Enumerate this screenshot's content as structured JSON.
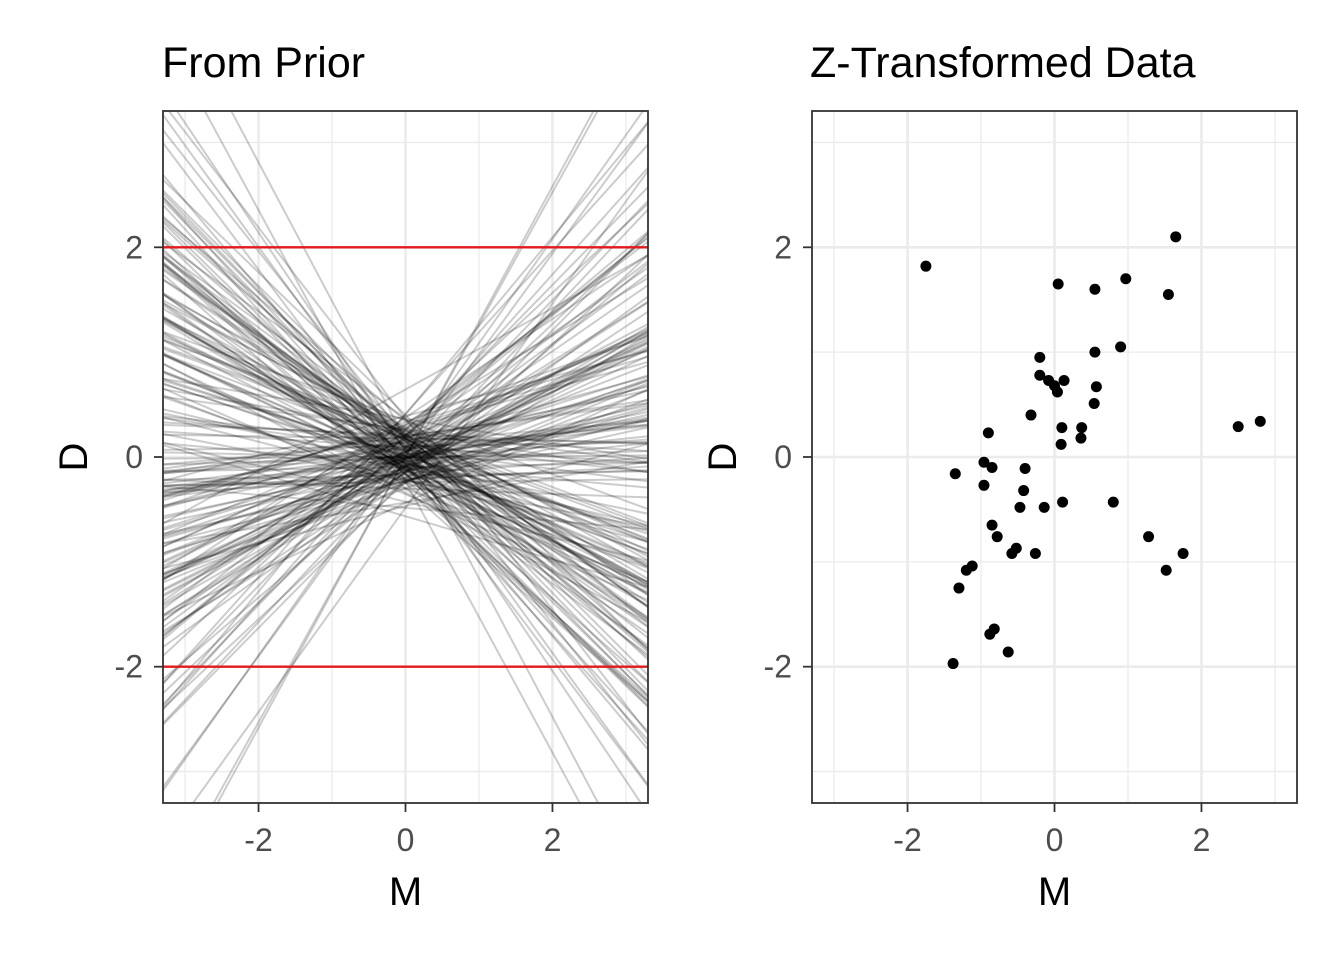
{
  "chart_data": [
    {
      "type": "line",
      "title": "From Prior",
      "xlabel": "M",
      "ylabel": "D",
      "xlim": [
        -3.3,
        3.3
      ],
      "ylim": [
        -3.3,
        3.3
      ],
      "xticks": [
        -2,
        0,
        2
      ],
      "yticks": [
        -2,
        0,
        2
      ],
      "xtick_labels": [
        "-2",
        "0",
        "2"
      ],
      "ytick_labels": [
        "-2",
        "0",
        "2"
      ],
      "grid": true,
      "reference_lines": [
        {
          "y": 2,
          "color": "#e41a1c"
        },
        {
          "y": -2,
          "color": "#e41a1c"
        }
      ],
      "series": {
        "color": "#000000",
        "opacity": 0.2,
        "intercept_sd": 0.2,
        "slope_sd": 0.5,
        "count": 200,
        "lines": [
          {
            "intercept": 0.09,
            "slope": -0.55
          },
          {
            "intercept": -0.21,
            "slope": 0.71
          },
          {
            "intercept": 0.32,
            "slope": 0.42
          },
          {
            "intercept": -0.05,
            "slope": -0.83
          },
          {
            "intercept": 0.14,
            "slope": 0.19
          },
          {
            "intercept": -0.3,
            "slope": -0.27
          },
          {
            "intercept": 0.02,
            "slope": 0.96
          },
          {
            "intercept": 0.25,
            "slope": -0.12
          },
          {
            "intercept": -0.12,
            "slope": 0.35
          },
          {
            "intercept": 0.4,
            "slope": -0.68
          }
        ]
      }
    },
    {
      "type": "scatter",
      "title": "Z-Transformed Data",
      "xlabel": "M",
      "ylabel": "D",
      "xlim": [
        -3.3,
        3.3
      ],
      "ylim": [
        -3.3,
        3.3
      ],
      "xticks": [
        -2,
        0,
        2
      ],
      "yticks": [
        -2,
        0,
        2
      ],
      "xtick_labels": [
        "-2",
        "0",
        "2"
      ],
      "ytick_labels": [
        "-2",
        "0",
        "2"
      ],
      "grid": true,
      "color": "#000000",
      "points": [
        [
          -1.75,
          1.82
        ],
        [
          1.65,
          2.1
        ],
        [
          0.05,
          1.65
        ],
        [
          0.55,
          1.6
        ],
        [
          0.97,
          1.7
        ],
        [
          1.55,
          1.55
        ],
        [
          0.9,
          1.05
        ],
        [
          0.55,
          1.0
        ],
        [
          -0.2,
          0.95
        ],
        [
          -0.2,
          0.78
        ],
        [
          -0.08,
          0.73
        ],
        [
          0.0,
          0.68
        ],
        [
          0.04,
          0.62
        ],
        [
          0.13,
          0.73
        ],
        [
          0.57,
          0.67
        ],
        [
          0.54,
          0.51
        ],
        [
          -0.32,
          0.4
        ],
        [
          0.1,
          0.28
        ],
        [
          0.37,
          0.28
        ],
        [
          0.36,
          0.18
        ],
        [
          0.09,
          0.12
        ],
        [
          -0.9,
          0.23
        ],
        [
          -0.96,
          -0.05
        ],
        [
          -0.85,
          -0.1
        ],
        [
          -1.35,
          -0.16
        ],
        [
          -0.4,
          -0.11
        ],
        [
          -0.96,
          -0.27
        ],
        [
          -0.42,
          -0.32
        ],
        [
          -0.47,
          -0.48
        ],
        [
          -0.14,
          -0.48
        ],
        [
          0.11,
          -0.43
        ],
        [
          0.8,
          -0.43
        ],
        [
          -0.85,
          -0.65
        ],
        [
          -0.78,
          -0.76
        ],
        [
          -0.26,
          -0.92
        ],
        [
          -0.52,
          -0.87
        ],
        [
          -0.58,
          -0.92
        ],
        [
          1.28,
          -0.76
        ],
        [
          1.75,
          -0.92
        ],
        [
          1.52,
          -1.08
        ],
        [
          -1.12,
          -1.04
        ],
        [
          -1.2,
          -1.08
        ],
        [
          -1.3,
          -1.25
        ],
        [
          -0.82,
          -1.64
        ],
        [
          -0.88,
          -1.69
        ],
        [
          -0.63,
          -1.86
        ],
        [
          -1.38,
          -1.97
        ],
        [
          2.5,
          0.29
        ],
        [
          2.8,
          0.34
        ]
      ]
    }
  ]
}
